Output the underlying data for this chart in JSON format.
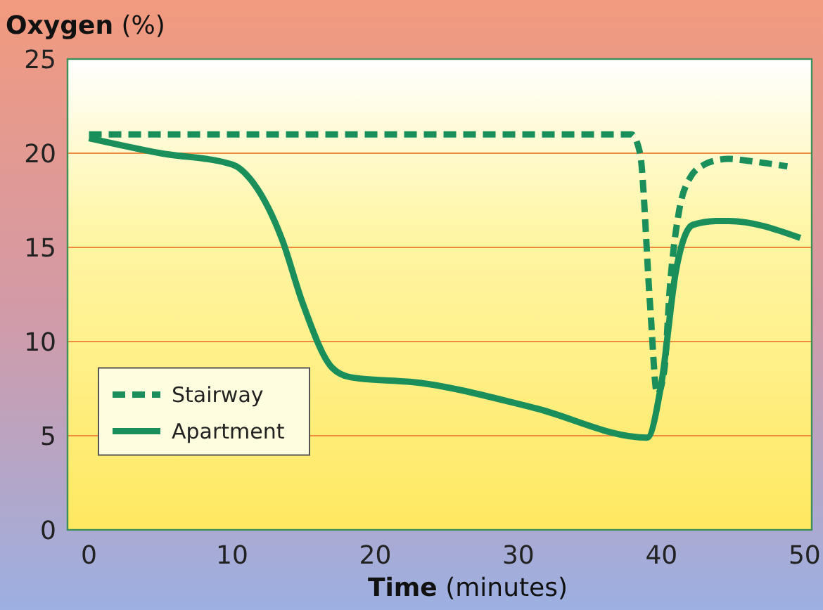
{
  "chart_data": {
    "type": "line",
    "xlabel": "Time (minutes)",
    "ylabel": "Oxygen (%)",
    "xlim": [
      -1.5,
      50.5
    ],
    "xticks": [
      0,
      10,
      20,
      30,
      40,
      50
    ],
    "ylim": [
      0,
      25
    ],
    "yticks": [
      0,
      5,
      10,
      15,
      20,
      25
    ],
    "grid": "y",
    "legend": "bottom left",
    "series": [
      {
        "name": "Stairway",
        "color": "#1a8f5c",
        "line_style": "dashed",
        "x": [
          0,
          10,
          20,
          30,
          37.9,
          38.5,
          39.2,
          39.7,
          40.2,
          40.6,
          41.2,
          42,
          43,
          43.7,
          44.7,
          46,
          48.8
        ],
        "values": [
          21,
          21,
          21,
          21,
          21,
          20,
          12,
          7.2,
          8.5,
          13,
          16.8,
          18.7,
          19.4,
          19.6,
          19.7,
          19.6,
          19.3
        ]
      },
      {
        "name": "Apartment",
        "color": "#1a8f5c",
        "line_style": "solid",
        "x": [
          0,
          5,
          10,
          11.5,
          13.5,
          14.9,
          17,
          18.3,
          23.2,
          31,
          39,
          40,
          41,
          42.2,
          43.9,
          44.7,
          49.7
        ],
        "values": [
          20.8,
          20,
          19.4,
          18.4,
          15.4,
          12.1,
          8.6,
          8.1,
          7.8,
          6.5,
          4.9,
          7.8,
          13.7,
          16.2,
          16.4,
          16.4,
          15.5
        ]
      }
    ]
  }
}
